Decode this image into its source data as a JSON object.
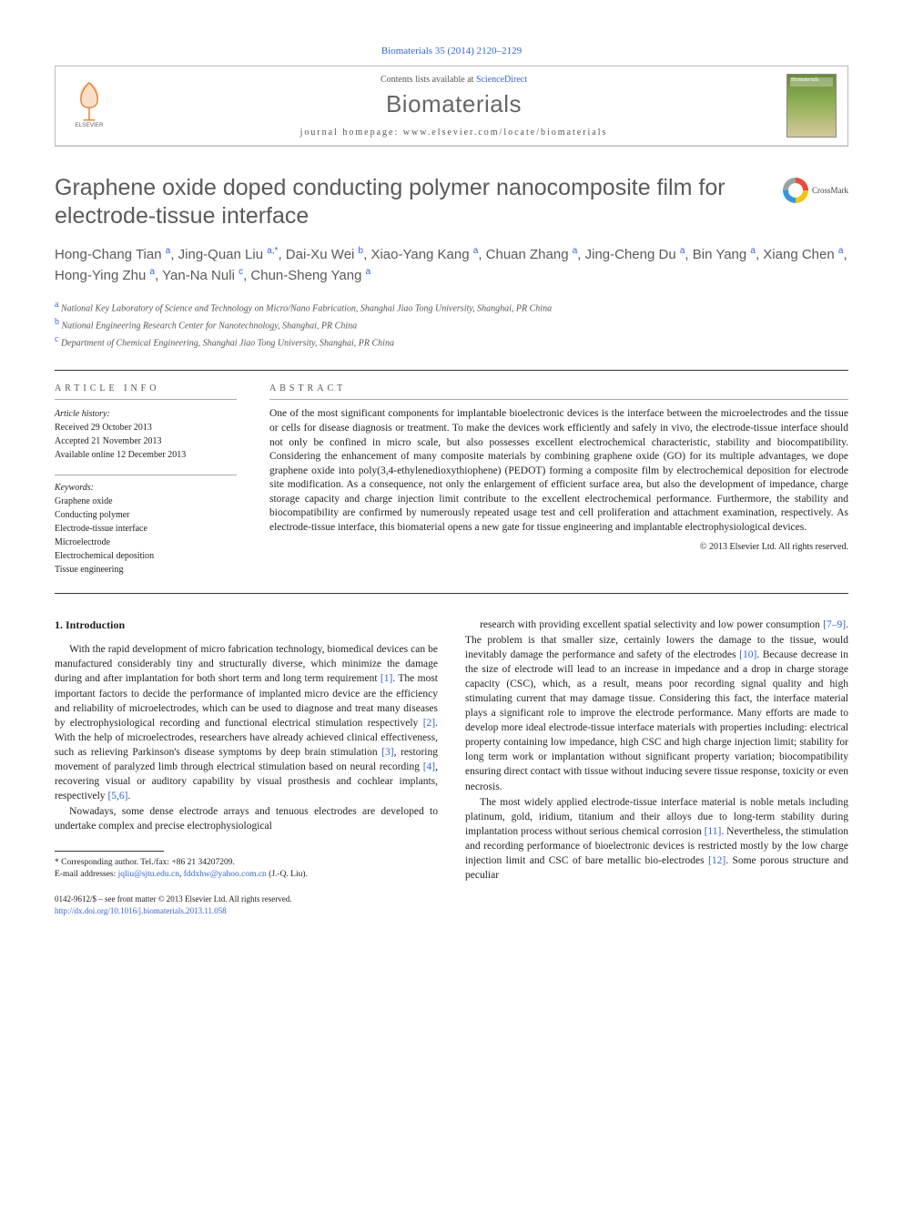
{
  "citation": "Biomaterials 35 (2014) 2120–2129",
  "header": {
    "contents_prefix": "Contents lists available at ",
    "contents_link": "ScienceDirect",
    "journal": "Biomaterials",
    "homepage_label": "journal homepage: ",
    "homepage_url": "www.elsevier.com/locate/biomaterials",
    "cover_label": "Biomaterials"
  },
  "crossmark": "CrossMark",
  "title": "Graphene oxide doped conducting polymer nanocomposite film for electrode-tissue interface",
  "authors_html": "Hong-Chang Tian <sup>a</sup>, Jing-Quan Liu <sup>a,*</sup>, Dai-Xu Wei <sup>b</sup>, Xiao-Yang Kang <sup>a</sup>, Chuan Zhang <sup>a</sup>, Jing-Cheng Du <sup>a</sup>, Bin Yang <sup>a</sup>, Xiang Chen <sup>a</sup>, Hong-Ying Zhu <sup>a</sup>, Yan-Na Nuli <sup>c</sup>, Chun-Sheng Yang <sup>a</sup>",
  "affiliations": [
    {
      "sup": "a",
      "text": "National Key Laboratory of Science and Technology on Micro/Nano Fabrication, Shanghai Jiao Tong University, Shanghai, PR China"
    },
    {
      "sup": "b",
      "text": "National Engineering Research Center for Nanotechnology, Shanghai, PR China"
    },
    {
      "sup": "c",
      "text": "Department of Chemical Engineering, Shanghai Jiao Tong University, Shanghai, PR China"
    }
  ],
  "info_heading": "ARTICLE INFO",
  "abstract_heading": "ABSTRACT",
  "history": {
    "label": "Article history:",
    "received": "Received 29 October 2013",
    "accepted": "Accepted 21 November 2013",
    "online": "Available online 12 December 2013"
  },
  "keywords_label": "Keywords:",
  "keywords": [
    "Graphene oxide",
    "Conducting polymer",
    "Electrode-tissue interface",
    "Microelectrode",
    "Electrochemical deposition",
    "Tissue engineering"
  ],
  "abstract": "One of the most significant components for implantable bioelectronic devices is the interface between the microelectrodes and the tissue or cells for disease diagnosis or treatment. To make the devices work efficiently and safely in vivo, the electrode-tissue interface should not only be confined in micro scale, but also possesses excellent electrochemical characteristic, stability and biocompatibility. Considering the enhancement of many composite materials by combining graphene oxide (GO) for its multiple advantages, we dope graphene oxide into poly(3,4-ethylenedioxythiophene) (PEDOT) forming a composite film by electrochemical deposition for electrode site modification. As a consequence, not only the enlargement of efficient surface area, but also the development of impedance, charge storage capacity and charge injection limit contribute to the excellent electrochemical performance. Furthermore, the stability and biocompatibility are confirmed by numerously repeated usage test and cell proliferation and attachment examination, respectively. As electrode-tissue interface, this biomaterial opens a new gate for tissue engineering and implantable electrophysiological devices.",
  "copyright": "© 2013 Elsevier Ltd. All rights reserved.",
  "section1_heading": "1. Introduction",
  "col1_p1": "With the rapid development of micro fabrication technology, biomedical devices can be manufactured considerably tiny and structurally diverse, which minimize the damage during and after implantation for both short term and long term requirement [1]. The most important factors to decide the performance of implanted micro device are the efficiency and reliability of microelectrodes, which can be used to diagnose and treat many diseases by electrophysiological recording and functional electrical stimulation respectively [2]. With the help of microelectrodes, researchers have already achieved clinical effectiveness, such as relieving Parkinson's disease symptoms by deep brain stimulation [3], restoring movement of paralyzed limb through electrical stimulation based on neural recording [4], recovering visual or auditory capability by visual prosthesis and cochlear implants, respectively [5,6].",
  "col1_p2": "Nowadays, some dense electrode arrays and tenuous electrodes are developed to undertake complex and precise electrophysiological",
  "col2_p1": "research with providing excellent spatial selectivity and low power consumption [7–9]. The problem is that smaller size, certainly lowers the damage to the tissue, would inevitably damage the performance and safety of the electrodes [10]. Because decrease in the size of electrode will lead to an increase in impedance and a drop in charge storage capacity (CSC), which, as a result, means poor recording signal quality and high stimulating current that may damage tissue. Considering this fact, the interface material plays a significant role to improve the electrode performance. Many efforts are made to develop more ideal electrode-tissue interface materials with properties including: electrical property containing low impedance, high CSC and high charge injection limit; stability for long term work or implantation without significant property variation; biocompatibility ensuring direct contact with tissue without inducing severe tissue response, toxicity or even necrosis.",
  "col2_p2": "The most widely applied electrode-tissue interface material is noble metals including platinum, gold, iridium, titanium and their alloys due to long-term stability during implantation process without serious chemical corrosion [11]. Nevertheless, the stimulation and recording performance of bioelectronic devices is restricted mostly by the low charge injection limit and CSC of bare metallic bio-electrodes [12]. Some porous structure and peculiar",
  "corr": {
    "line": "* Corresponding author. Tel./fax: +86 21 34207209.",
    "emails_label": "E-mail addresses: ",
    "email1": "jqliu@sjtu.edu.cn",
    "email2": "fddxhw@yahoo.com.cn",
    "person": " (J.-Q. Liu)."
  },
  "bottom": {
    "issn": "0142-9612/$ – see front matter © 2013 Elsevier Ltd. All rights reserved.",
    "doi": "http://dx.doi.org/10.1016/j.biomaterials.2013.11.058"
  },
  "colors": {
    "link": "#3366cc",
    "heading_gray": "#5a5a5a"
  }
}
